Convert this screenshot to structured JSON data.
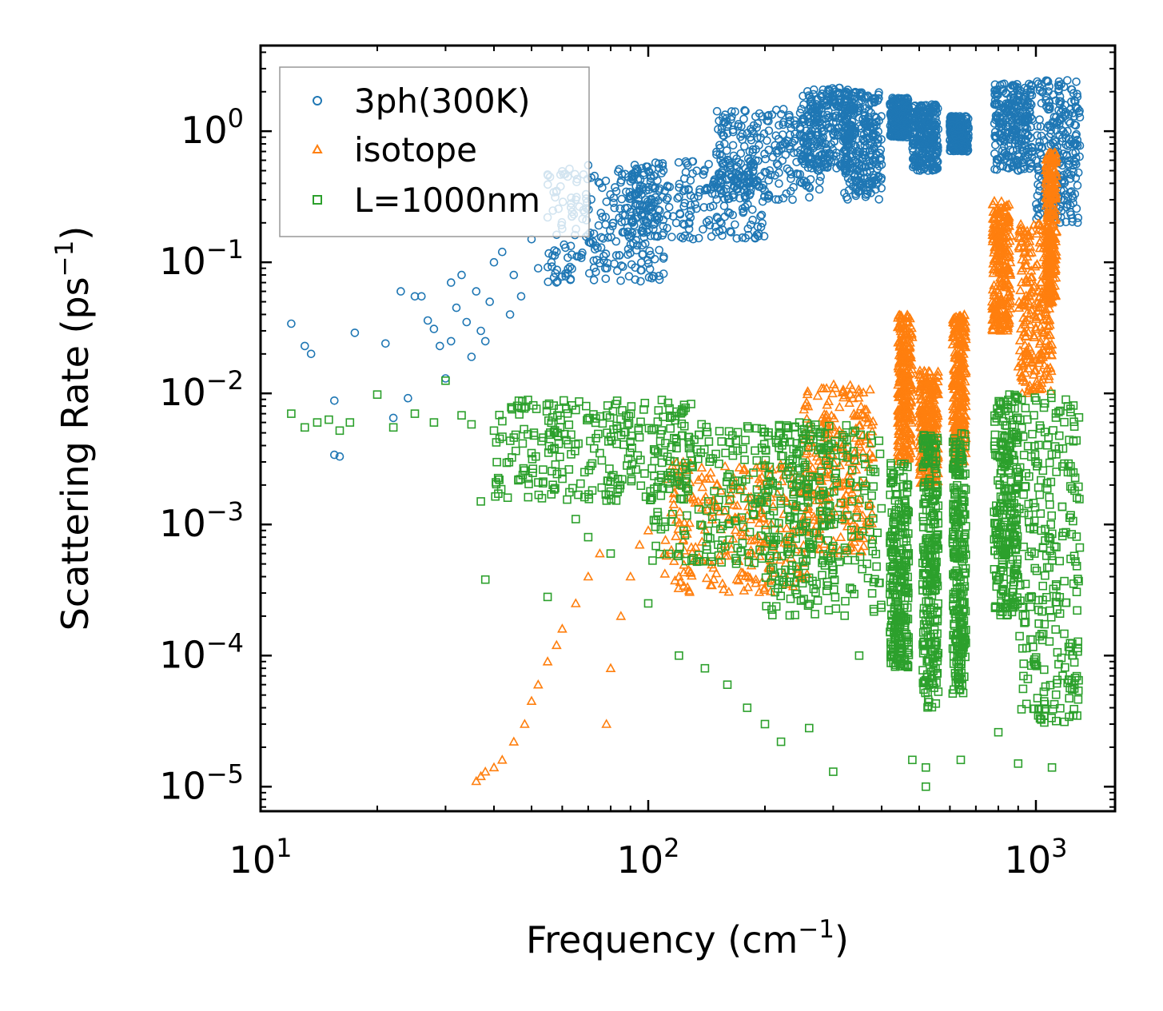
{
  "chart_data": {
    "type": "scatter",
    "title": "",
    "xlabel": "Frequency",
    "xlabel_unit": "(cm",
    "xlabel_exp": "−1",
    "xlabel_close": ")",
    "ylabel": "Scattering Rate",
    "ylabel_unit": "(ps",
    "ylabel_exp": "−1",
    "ylabel_close": ")",
    "xscale": "log",
    "yscale": "log",
    "xlim": [
      10,
      1600
    ],
    "ylim": [
      6.5e-06,
      4.5
    ],
    "x_ticks": [
      {
        "value": 10,
        "base": "10",
        "exp": "1"
      },
      {
        "value": 100,
        "base": "10",
        "exp": "2"
      },
      {
        "value": 1000,
        "base": "10",
        "exp": "3"
      }
    ],
    "y_ticks": [
      {
        "value": 1,
        "base": "10",
        "exp": "0"
      },
      {
        "value": 0.1,
        "base": "10",
        "exp": "−1"
      },
      {
        "value": 0.01,
        "base": "10",
        "exp": "−2"
      },
      {
        "value": 0.001,
        "base": "10",
        "exp": "−3"
      },
      {
        "value": 0.0001,
        "base": "10",
        "exp": "−4"
      },
      {
        "value": 1e-05,
        "base": "10",
        "exp": "−5"
      }
    ],
    "legend_position": "top-left",
    "series": [
      {
        "name": "3ph(300K)",
        "marker": "circle",
        "color": "#1f77b4",
        "points": [
          [
            12,
            0.034
          ],
          [
            13,
            0.023
          ],
          [
            13.5,
            0.02
          ],
          [
            15.5,
            0.0088
          ],
          [
            15.5,
            0.0034
          ],
          [
            16,
            0.0033
          ],
          [
            17.5,
            0.029
          ],
          [
            21,
            0.024
          ],
          [
            22,
            0.0065
          ],
          [
            23,
            0.06
          ],
          [
            24,
            0.0092
          ],
          [
            25,
            0.055
          ],
          [
            26,
            0.055
          ],
          [
            27,
            0.036
          ],
          [
            28,
            0.031
          ],
          [
            29,
            0.023
          ],
          [
            30,
            0.013
          ],
          [
            31,
            0.07
          ],
          [
            31,
            0.025
          ],
          [
            32,
            0.045
          ],
          [
            33,
            0.08
          ],
          [
            34,
            0.035
          ],
          [
            35,
            0.019
          ],
          [
            36,
            0.06
          ],
          [
            37,
            0.03
          ],
          [
            38,
            0.025
          ],
          [
            39,
            0.05
          ],
          [
            40,
            0.1
          ],
          [
            42,
            0.12
          ],
          [
            44,
            0.04
          ],
          [
            45,
            0.08
          ],
          [
            47,
            0.055
          ],
          [
            50,
            0.15
          ],
          [
            52,
            0.09
          ],
          [
            55,
            0.22
          ],
          [
            58,
            0.35
          ],
          [
            60,
            0.18
          ],
          [
            62,
            0.45
          ],
          [
            65,
            0.3
          ],
          [
            68,
            0.25
          ],
          [
            70,
            0.55
          ],
          [
            75,
            0.4
          ]
        ],
        "bands": [
          {
            "x0": 55,
            "x1": 110,
            "y0": 0.07,
            "y1": 0.55
          },
          {
            "x0": 90,
            "x1": 200,
            "y0": 0.15,
            "y1": 0.6
          },
          {
            "x0": 150,
            "x1": 280,
            "y0": 0.3,
            "y1": 1.5
          },
          {
            "x0": 250,
            "x1": 340,
            "y0": 0.5,
            "y1": 2.2
          },
          {
            "x0": 320,
            "x1": 400,
            "y0": 0.3,
            "y1": 2.0
          },
          {
            "x0": 420,
            "x1": 470,
            "y0": 0.9,
            "y1": 1.8
          },
          {
            "x0": 480,
            "x1": 560,
            "y0": 0.5,
            "y1": 1.6
          },
          {
            "x0": 600,
            "x1": 670,
            "y0": 0.7,
            "y1": 1.3
          },
          {
            "x0": 780,
            "x1": 980,
            "y0": 0.5,
            "y1": 2.3
          },
          {
            "x0": 1000,
            "x1": 1300,
            "y0": 0.2,
            "y1": 2.5
          }
        ]
      },
      {
        "name": "isotope",
        "marker": "triangle",
        "color": "#ff7f0e",
        "points": [
          [
            36,
            1.1e-05
          ],
          [
            37,
            1.2e-05
          ],
          [
            38,
            1.3e-05
          ],
          [
            40,
            1.4e-05
          ],
          [
            42,
            1.6e-05
          ],
          [
            45,
            2.2e-05
          ],
          [
            48,
            3e-05
          ],
          [
            50,
            4.5e-05
          ],
          [
            52,
            6e-05
          ],
          [
            55,
            9e-05
          ],
          [
            58,
            0.00012
          ],
          [
            60,
            0.00016
          ],
          [
            65,
            0.00025
          ],
          [
            70,
            0.0004
          ],
          [
            75,
            0.0006
          ],
          [
            78,
            3e-05
          ],
          [
            80,
            8e-05
          ],
          [
            85,
            0.0002
          ],
          [
            90,
            0.0004
          ],
          [
            95,
            0.0007
          ],
          [
            100,
            0.0009
          ],
          [
            110,
            0.0006
          ],
          [
            120,
            0.0004
          ]
        ],
        "bands": [
          {
            "x0": 110,
            "x1": 260,
            "y0": 0.0003,
            "y1": 0.003
          },
          {
            "x0": 250,
            "x1": 380,
            "y0": 0.0006,
            "y1": 0.012
          },
          {
            "x0": 440,
            "x1": 480,
            "y0": 0.003,
            "y1": 0.04
          },
          {
            "x0": 500,
            "x1": 560,
            "y0": 0.002,
            "y1": 0.015
          },
          {
            "x0": 610,
            "x1": 660,
            "y0": 0.003,
            "y1": 0.04
          },
          {
            "x0": 770,
            "x1": 860,
            "y0": 0.03,
            "y1": 0.3
          },
          {
            "x0": 900,
            "x1": 1100,
            "y0": 0.01,
            "y1": 0.2
          },
          {
            "x0": 1060,
            "x1": 1130,
            "y0": 0.05,
            "y1": 0.7
          }
        ]
      },
      {
        "name": "L=1000nm",
        "marker": "square",
        "color": "#2ca02c",
        "points": [
          [
            12,
            0.007
          ],
          [
            13,
            0.0055
          ],
          [
            14,
            0.006
          ],
          [
            15,
            0.0063
          ],
          [
            16,
            0.0052
          ],
          [
            17,
            0.006
          ],
          [
            20,
            0.0098
          ],
          [
            22,
            0.0055
          ],
          [
            25,
            0.007
          ],
          [
            28,
            0.006
          ],
          [
            30,
            0.0125
          ],
          [
            33,
            0.0068
          ],
          [
            35,
            0.0058
          ],
          [
            37,
            0.0015
          ],
          [
            38,
            0.00038
          ],
          [
            40,
            0.0052
          ],
          [
            45,
            0.0046
          ],
          [
            50,
            0.0035
          ],
          [
            55,
            0.00028
          ],
          [
            60,
            0.0025
          ],
          [
            65,
            0.0011
          ],
          [
            70,
            0.0008
          ],
          [
            75,
            0.0035
          ],
          [
            80,
            0.0006
          ],
          [
            100,
            0.00025
          ],
          [
            120,
            0.0001
          ],
          [
            140,
            8e-05
          ],
          [
            160,
            6e-05
          ],
          [
            180,
            4e-05
          ],
          [
            200,
            3e-05
          ],
          [
            220,
            2.2e-05
          ],
          [
            260,
            2.8e-05
          ],
          [
            300,
            1.3e-05
          ],
          [
            350,
            0.0001
          ],
          [
            480,
            1.6e-05
          ],
          [
            520,
            1e-05
          ],
          [
            520,
            1.4e-05
          ],
          [
            640,
            1.6e-05
          ],
          [
            800,
            2.6e-05
          ],
          [
            900,
            1.5e-05
          ],
          [
            1100,
            1.4e-05
          ]
        ],
        "bands": [
          {
            "x0": 40,
            "x1": 130,
            "y0": 0.0015,
            "y1": 0.009
          },
          {
            "x0": 100,
            "x1": 300,
            "y0": 0.0005,
            "y1": 0.006
          },
          {
            "x0": 200,
            "x1": 400,
            "y0": 0.0002,
            "y1": 0.006
          },
          {
            "x0": 420,
            "x1": 470,
            "y0": 8e-05,
            "y1": 0.003
          },
          {
            "x0": 510,
            "x1": 560,
            "y0": 4e-05,
            "y1": 0.005
          },
          {
            "x0": 610,
            "x1": 660,
            "y0": 5e-05,
            "y1": 0.005
          },
          {
            "x0": 780,
            "x1": 900,
            "y0": 0.0002,
            "y1": 0.01
          },
          {
            "x0": 900,
            "x1": 1300,
            "y0": 3e-05,
            "y1": 0.01
          }
        ]
      }
    ]
  }
}
